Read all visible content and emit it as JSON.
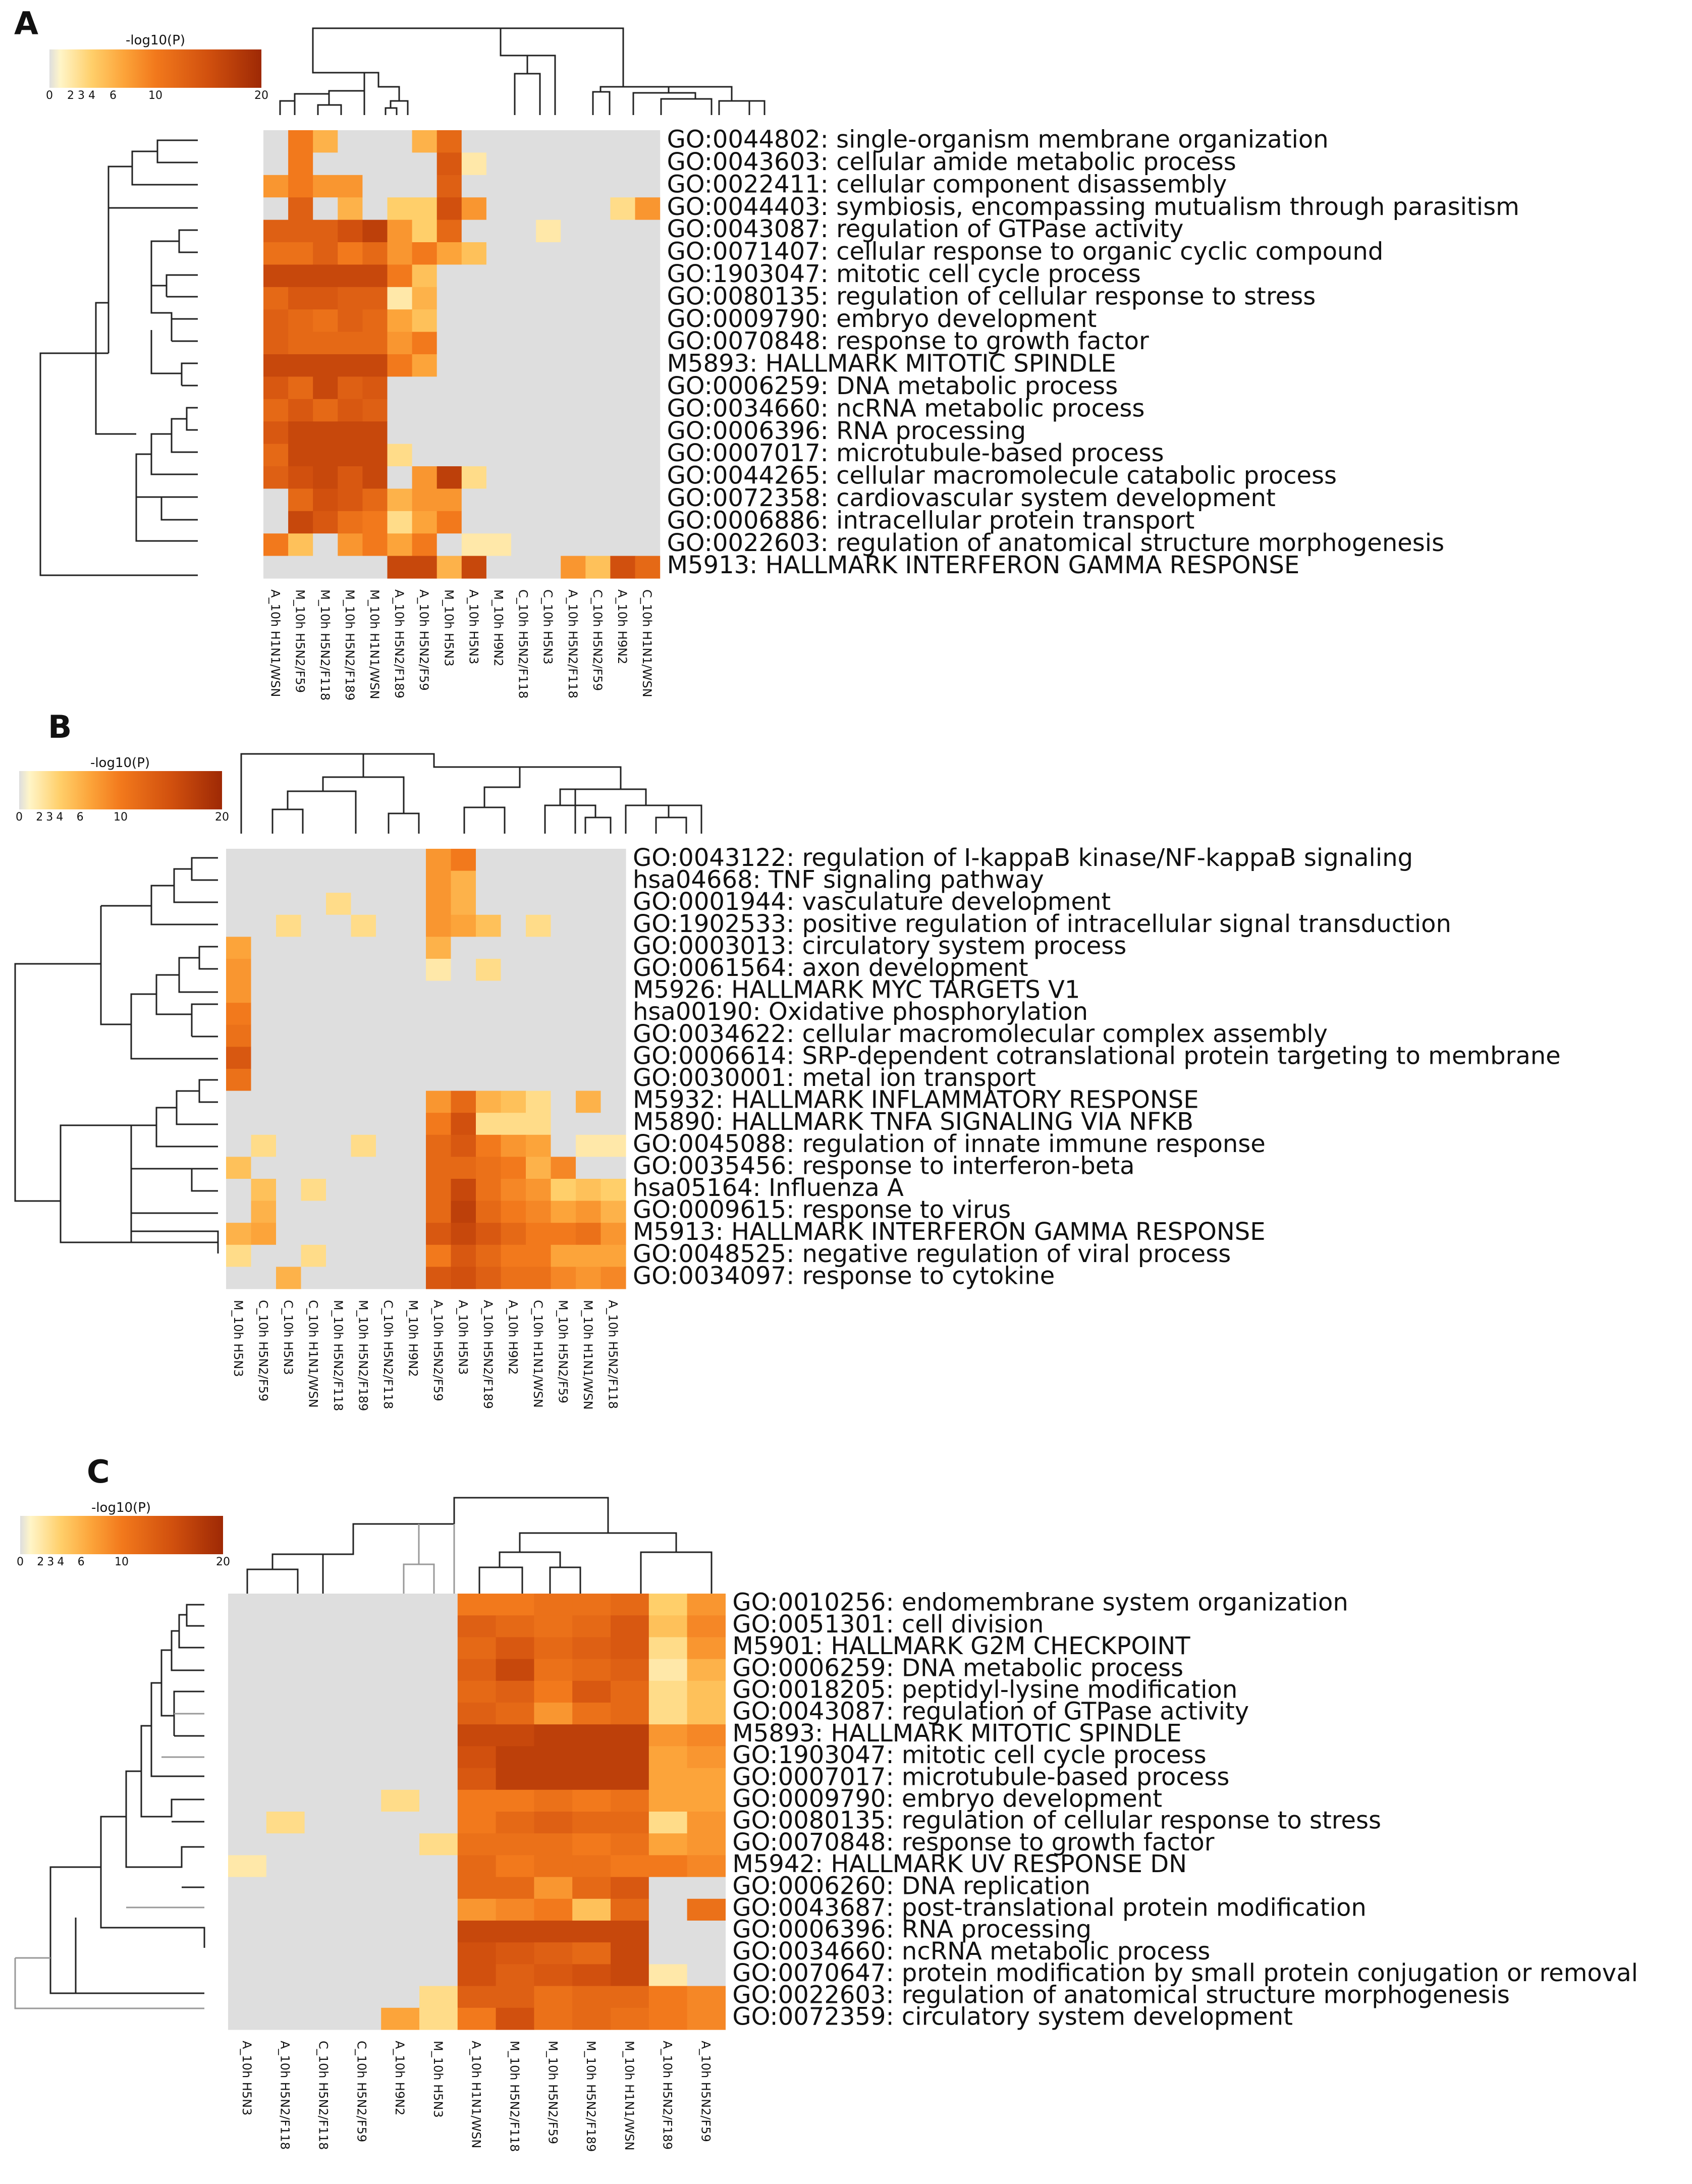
{
  "chart_data": [
    {
      "panel": "A",
      "type": "heatmap",
      "colorbar": {
        "title": "-log10(P)",
        "ticks": [
          0,
          2,
          3,
          4,
          6,
          10,
          20
        ]
      },
      "columns": [
        "A_10h H1N1/WSN",
        "M_10h H5N2/F59",
        "M_10h H5N2/F118",
        "M_10h H5N2/F189",
        "M_10h H1N1/WSN",
        "A_10h H5N2/F189",
        "A_10h H5N2/F59",
        "M_10h H5N3",
        "A_10h H5N3",
        "M_10h H9N2",
        "C_10h H5N2/F118",
        "C_10h H5N3",
        "A_10h H5N2/F118",
        "C_10h H5N2/F59",
        "A_10h H9N2",
        "C_10h H1N1/WSN"
      ],
      "rows": [
        "GO:0044802: single-organism membrane organization",
        "GO:0043603: cellular amide metabolic process",
        "GO:0022411: cellular component disassembly",
        "GO:0044403: symbiosis, encompassing mutualism through parasitism",
        "GO:0043087: regulation of GTPase activity",
        "GO:0071407: cellular response to organic cyclic compound",
        "GO:1903047: mitotic cell cycle process",
        "GO:0080135: regulation of cellular response to stress",
        "GO:0009790: embryo development",
        "GO:0070848: response to growth factor",
        "M5893: HALLMARK MITOTIC SPINDLE",
        "GO:0006259: DNA metabolic process",
        "GO:0034660: ncRNA metabolic process",
        "GO:0006396: RNA processing",
        "GO:0007017: microtubule-based process",
        "GO:0044265: cellular macromolecule catabolic process",
        "GO:0072358: cardiovascular system development",
        "GO:0006886: intracellular protein transport",
        "GO:0022603: regulation of anatomical structure morphogenesis",
        "M5913: HALLMARK INTERFERON GAMMA RESPONSE"
      ],
      "values": [
        [
          0,
          10,
          6,
          0,
          0,
          0,
          6,
          12,
          0,
          0,
          0,
          0,
          0,
          0,
          0,
          0
        ],
        [
          0,
          10,
          0,
          0,
          0,
          0,
          0,
          14,
          2,
          0,
          0,
          0,
          0,
          0,
          0,
          0
        ],
        [
          8,
          10,
          8,
          8,
          0,
          0,
          0,
          13,
          0,
          0,
          0,
          0,
          0,
          0,
          0,
          0
        ],
        [
          0,
          13,
          0,
          6,
          0,
          4,
          4,
          15,
          8,
          0,
          0,
          0,
          0,
          0,
          3,
          8
        ],
        [
          13,
          13,
          13,
          15,
          17,
          8,
          4,
          12,
          0,
          0,
          0,
          2,
          0,
          0,
          0,
          0
        ],
        [
          11,
          11,
          13,
          10,
          12,
          8,
          10,
          7,
          5,
          0,
          0,
          0,
          0,
          0,
          0,
          0
        ],
        [
          16,
          16,
          16,
          16,
          16,
          10,
          5,
          0,
          0,
          0,
          0,
          0,
          0,
          0,
          0,
          0
        ],
        [
          12,
          14,
          14,
          13,
          13,
          2,
          6,
          0,
          0,
          0,
          0,
          0,
          0,
          0,
          0,
          0
        ],
        [
          13,
          12,
          11,
          13,
          12,
          7,
          5,
          0,
          0,
          0,
          0,
          0,
          0,
          0,
          0,
          0
        ],
        [
          13,
          12,
          12,
          12,
          12,
          8,
          10,
          0,
          0,
          0,
          0,
          0,
          0,
          0,
          0,
          0
        ],
        [
          16,
          16,
          16,
          16,
          16,
          10,
          7,
          0,
          0,
          0,
          0,
          0,
          0,
          0,
          0,
          0
        ],
        [
          14,
          12,
          16,
          13,
          14,
          0,
          0,
          0,
          0,
          0,
          0,
          0,
          0,
          0,
          0,
          0
        ],
        [
          12,
          14,
          12,
          14,
          13,
          0,
          0,
          0,
          0,
          0,
          0,
          0,
          0,
          0,
          0,
          0
        ],
        [
          14,
          16,
          16,
          16,
          16,
          0,
          0,
          0,
          0,
          0,
          0,
          0,
          0,
          0,
          0,
          0
        ],
        [
          12,
          16,
          16,
          16,
          16,
          3,
          0,
          0,
          0,
          0,
          0,
          0,
          0,
          0,
          0,
          0
        ],
        [
          13,
          15,
          16,
          14,
          16,
          0,
          8,
          17,
          3,
          0,
          0,
          0,
          0,
          0,
          0,
          0
        ],
        [
          0,
          12,
          15,
          14,
          12,
          6,
          8,
          8,
          0,
          0,
          0,
          0,
          0,
          0,
          0,
          0
        ],
        [
          0,
          16,
          14,
          11,
          10,
          3,
          7,
          10,
          0,
          0,
          0,
          0,
          0,
          0,
          0,
          0
        ],
        [
          10,
          5,
          0,
          8,
          10,
          7,
          10,
          0,
          2,
          2,
          0,
          0,
          0,
          0,
          0,
          0
        ],
        [
          0,
          0,
          0,
          0,
          0,
          16,
          16,
          6,
          16,
          0,
          0,
          0,
          8,
          5,
          15,
          12
        ]
      ]
    },
    {
      "panel": "B",
      "type": "heatmap",
      "colorbar": {
        "title": "-log10(P)",
        "ticks": [
          0,
          2,
          3,
          4,
          6,
          10,
          20
        ]
      },
      "columns": [
        "M_10h H5N3",
        "C_10h H5N2/F59",
        "C_10h H5N3",
        "C_10h H1N1/WSN",
        "M_10h H5N2/F118",
        "M_10h H5N2/F189",
        "C_10h H5N2/F118",
        "M_10h H9N2",
        "A_10h H5N2/F59",
        "A_10h H5N3",
        "A_10h H5N2/F189",
        "A_10h H9N2",
        "C_10h H1N1/WSN",
        "M_10h H5N2/F59",
        "M_10h H1N1/WSN",
        "A_10h H5N2/F118"
      ],
      "rows": [
        "GO:0043122: regulation of I-kappaB kinase/NF-kappaB signaling",
        "hsa04668: TNF signaling pathway",
        "GO:0001944: vasculature development",
        "GO:1902533: positive regulation of intracellular signal transduction",
        "GO:0003013: circulatory system process",
        "GO:0061564: axon development",
        "M5926: HALLMARK MYC TARGETS V1",
        "hsa00190: Oxidative phosphorylation",
        "GO:0034622: cellular macromolecular complex assembly",
        "GO:0006614: SRP-dependent cotranslational protein targeting to membrane",
        "GO:0030001: metal ion transport",
        "M5932: HALLMARK INFLAMMATORY RESPONSE",
        "M5890: HALLMARK TNFA SIGNALING VIA NFKB",
        "GO:0045088: regulation of innate immune response",
        "GO:0035456: response to interferon-beta",
        "hsa05164: Influenza A",
        "GO:0009615: response to virus",
        "M5913: HALLMARK INTERFERON GAMMA RESPONSE",
        "GO:0048525: negative regulation of viral process",
        "GO:0034097: response to cytokine"
      ],
      "values": [
        [
          0,
          0,
          0,
          0,
          0,
          0,
          0,
          0,
          8,
          10,
          0,
          0,
          0,
          0,
          0,
          0
        ],
        [
          0,
          0,
          0,
          0,
          0,
          0,
          0,
          0,
          8,
          6,
          0,
          0,
          0,
          0,
          0,
          0
        ],
        [
          0,
          0,
          0,
          0,
          3,
          0,
          0,
          0,
          8,
          6,
          0,
          0,
          0,
          0,
          0,
          0
        ],
        [
          0,
          0,
          3,
          0,
          0,
          3,
          0,
          0,
          8,
          7,
          5,
          0,
          3,
          0,
          0,
          0
        ],
        [
          7,
          0,
          0,
          0,
          0,
          0,
          0,
          0,
          6,
          0,
          0,
          0,
          0,
          0,
          0,
          0
        ],
        [
          8,
          0,
          0,
          0,
          0,
          0,
          0,
          0,
          2,
          0,
          3,
          0,
          0,
          0,
          0,
          0
        ],
        [
          8,
          0,
          0,
          0,
          0,
          0,
          0,
          0,
          0,
          0,
          0,
          0,
          0,
          0,
          0,
          0
        ],
        [
          10,
          0,
          0,
          0,
          0,
          0,
          0,
          0,
          0,
          0,
          0,
          0,
          0,
          0,
          0,
          0
        ],
        [
          11,
          0,
          0,
          0,
          0,
          0,
          0,
          0,
          0,
          0,
          0,
          0,
          0,
          0,
          0,
          0
        ],
        [
          14,
          0,
          0,
          0,
          0,
          0,
          0,
          0,
          0,
          0,
          0,
          0,
          0,
          0,
          0,
          0
        ],
        [
          11,
          0,
          0,
          0,
          0,
          0,
          0,
          0,
          0,
          0,
          0,
          0,
          0,
          0,
          0,
          0
        ],
        [
          0,
          0,
          0,
          0,
          0,
          0,
          0,
          0,
          8,
          12,
          6,
          5,
          3,
          0,
          6,
          0
        ],
        [
          0,
          0,
          0,
          0,
          0,
          0,
          0,
          0,
          10,
          15,
          3,
          3,
          3,
          0,
          0,
          0
        ],
        [
          0,
          3,
          0,
          0,
          0,
          3,
          0,
          0,
          12,
          14,
          10,
          8,
          7,
          0,
          2,
          2
        ],
        [
          5,
          0,
          0,
          0,
          0,
          0,
          0,
          0,
          12,
          12,
          11,
          10,
          6,
          9,
          0,
          0
        ],
        [
          0,
          5,
          0,
          3,
          0,
          0,
          0,
          0,
          12,
          16,
          11,
          9,
          8,
          4,
          5,
          4
        ],
        [
          0,
          6,
          0,
          0,
          0,
          0,
          0,
          0,
          12,
          17,
          12,
          10,
          9,
          7,
          8,
          6
        ],
        [
          6,
          7,
          0,
          0,
          0,
          0,
          0,
          0,
          14,
          16,
          14,
          12,
          10,
          10,
          11,
          8
        ],
        [
          3,
          0,
          0,
          3,
          0,
          0,
          0,
          0,
          10,
          14,
          12,
          10,
          10,
          7,
          7,
          7
        ],
        [
          0,
          0,
          6,
          0,
          0,
          0,
          0,
          0,
          14,
          15,
          13,
          11,
          11,
          9,
          8,
          9
        ]
      ]
    },
    {
      "panel": "C",
      "type": "heatmap",
      "colorbar": {
        "title": "-log10(P)",
        "ticks": [
          0,
          2,
          3,
          4,
          6,
          10,
          20
        ]
      },
      "columns": [
        "A_10h H5N3",
        "A_10h H5N2/F118",
        "C_10h H5N2/F118",
        "C_10h H5N2/F59",
        "A_10h H9N2",
        "M_10h H5N3",
        "A_10h H1N1/WSN",
        "M_10h H5N2/F118",
        "M_10h H5N2/F59",
        "M_10h H5N2/F189",
        "M_10h H1N1/WSN",
        "A_10h H5N2/F189",
        "A_10h H5N2/F59"
      ],
      "rows": [
        "GO:0010256: endomembrane system organization",
        "GO:0051301: cell division",
        "M5901: HALLMARK G2M CHECKPOINT",
        "GO:0006259: DNA metabolic process",
        "GO:0018205: peptidyl-lysine modification",
        "GO:0043087: regulation of GTPase activity",
        "M5893: HALLMARK MITOTIC SPINDLE",
        "GO:1903047: mitotic cell cycle process",
        "GO:0007017: microtubule-based process",
        "GO:0009790: embryo development",
        "GO:0080135: regulation of cellular response to stress",
        "GO:0070848: response to growth factor",
        "M5942: HALLMARK UV RESPONSE DN",
        "GO:0006260: DNA replication",
        "GO:0043687: post-translational protein modification",
        "GO:0006396: RNA processing",
        "GO:0034660: ncRNA metabolic process",
        "GO:0070647: protein modification by small protein conjugation or removal",
        "GO:0022603: regulation of anatomical structure morphogenesis",
        "GO:0072359: circulatory system development"
      ],
      "values": [
        [
          0,
          0,
          0,
          0,
          0,
          0,
          10,
          10,
          11,
          11,
          12,
          4,
          8
        ],
        [
          0,
          0,
          0,
          0,
          0,
          0,
          13,
          12,
          11,
          12,
          14,
          5,
          9
        ],
        [
          0,
          0,
          0,
          0,
          0,
          0,
          12,
          14,
          12,
          13,
          14,
          3,
          8
        ],
        [
          0,
          0,
          0,
          0,
          0,
          0,
          13,
          16,
          11,
          12,
          13,
          2,
          6
        ],
        [
          0,
          0,
          0,
          0,
          0,
          0,
          12,
          13,
          10,
          14,
          12,
          3,
          5
        ],
        [
          0,
          0,
          0,
          0,
          0,
          0,
          13,
          12,
          8,
          11,
          12,
          3,
          5
        ],
        [
          0,
          0,
          0,
          0,
          0,
          0,
          16,
          16,
          17,
          17,
          17,
          8,
          9
        ],
        [
          0,
          0,
          0,
          0,
          0,
          0,
          15,
          17,
          17,
          17,
          17,
          7,
          8
        ],
        [
          0,
          0,
          0,
          0,
          0,
          0,
          14,
          17,
          17,
          17,
          17,
          7,
          7
        ],
        [
          0,
          0,
          0,
          0,
          3,
          0,
          10,
          10,
          11,
          10,
          11,
          7,
          7
        ],
        [
          0,
          3,
          0,
          0,
          0,
          0,
          10,
          12,
          13,
          12,
          12,
          3,
          8
        ],
        [
          0,
          0,
          0,
          0,
          0,
          3,
          11,
          11,
          11,
          10,
          11,
          7,
          8
        ],
        [
          2,
          0,
          0,
          0,
          0,
          0,
          12,
          10,
          11,
          11,
          10,
          10,
          9
        ],
        [
          0,
          0,
          0,
          0,
          0,
          0,
          12,
          12,
          8,
          12,
          14,
          0,
          0
        ],
        [
          0,
          0,
          0,
          0,
          0,
          0,
          8,
          9,
          10,
          5,
          12,
          0,
          11
        ],
        [
          0,
          0,
          0,
          0,
          0,
          0,
          16,
          16,
          16,
          16,
          16,
          0,
          0
        ],
        [
          0,
          0,
          0,
          0,
          0,
          0,
          15,
          14,
          13,
          12,
          16,
          0,
          0
        ],
        [
          0,
          0,
          0,
          0,
          0,
          0,
          15,
          13,
          14,
          15,
          16,
          2,
          0
        ],
        [
          0,
          0,
          0,
          0,
          0,
          3,
          13,
          13,
          11,
          12,
          12,
          10,
          9
        ],
        [
          0,
          0,
          0,
          0,
          7,
          3,
          10,
          15,
          11,
          12,
          11,
          10,
          9
        ]
      ]
    }
  ]
}
